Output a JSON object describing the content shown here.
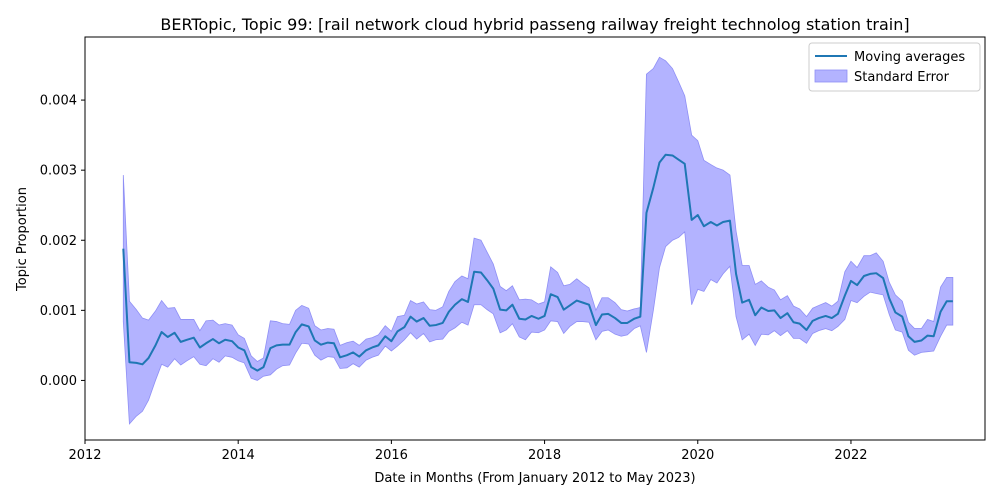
{
  "chart_data": {
    "type": "line",
    "title": "BERTopic, Topic 99: [rail network cloud hybrid passeng railway freight technolog station train]",
    "xlabel": "Date in Months (From January 2012 to May 2023)",
    "ylabel": "Topic Proportion",
    "xlim": [
      2012.0,
      2023.75
    ],
    "ylim": [
      -0.00085,
      0.0049
    ],
    "x_ticks": [
      2012,
      2014,
      2016,
      2018,
      2020,
      2022
    ],
    "x_tick_labels": [
      "2012",
      "2014",
      "2016",
      "2018",
      "2020",
      "2022"
    ],
    "y_ticks": [
      0,
      0.001,
      0.002,
      0.003,
      0.004
    ],
    "y_tick_labels": [
      "0.000",
      "0.001",
      "0.002",
      "0.003",
      "0.004"
    ],
    "legend": {
      "position": "top-right",
      "entries": [
        "Moving averages",
        "Standard Error"
      ]
    },
    "colors": {
      "line": "#1f77b4",
      "band": "#b3b3ff",
      "band_edge": "#8f8ff5"
    },
    "series": [
      {
        "name": "Moving averages",
        "points": [
          [
            2012.5,
            0.00188
          ],
          [
            2012.58,
            0.00026
          ],
          [
            2012.67,
            0.00025
          ],
          [
            2012.75,
            0.00023
          ],
          [
            2012.83,
            0.00032
          ],
          [
            2012.92,
            0.0005
          ],
          [
            2013.0,
            0.00069
          ],
          [
            2013.08,
            0.00062
          ],
          [
            2013.17,
            0.00068
          ],
          [
            2013.25,
            0.00055
          ],
          [
            2013.33,
            0.00058
          ],
          [
            2013.42,
            0.00061
          ],
          [
            2013.5,
            0.00047
          ],
          [
            2013.58,
            0.00053
          ],
          [
            2013.67,
            0.00059
          ],
          [
            2013.75,
            0.00053
          ],
          [
            2013.83,
            0.00058
          ],
          [
            2013.92,
            0.00056
          ],
          [
            2014.0,
            0.00047
          ],
          [
            2014.08,
            0.00043
          ],
          [
            2014.17,
            0.00019
          ],
          [
            2014.25,
            0.00014
          ],
          [
            2014.33,
            0.00019
          ],
          [
            2014.42,
            0.00046
          ],
          [
            2014.5,
            0.0005
          ],
          [
            2014.58,
            0.00051
          ],
          [
            2014.67,
            0.00051
          ],
          [
            2014.75,
            0.00069
          ],
          [
            2014.83,
            0.0008
          ],
          [
            2014.92,
            0.00077
          ],
          [
            2015.0,
            0.00057
          ],
          [
            2015.08,
            0.00051
          ],
          [
            2015.17,
            0.00054
          ],
          [
            2015.25,
            0.00053
          ],
          [
            2015.33,
            0.00033
          ],
          [
            2015.42,
            0.00036
          ],
          [
            2015.5,
            0.0004
          ],
          [
            2015.58,
            0.00034
          ],
          [
            2015.67,
            0.00043
          ],
          [
            2015.75,
            0.00047
          ],
          [
            2015.83,
            0.0005
          ],
          [
            2015.92,
            0.00063
          ],
          [
            2016.0,
            0.00056
          ],
          [
            2016.08,
            0.0007
          ],
          [
            2016.17,
            0.00076
          ],
          [
            2016.25,
            0.00091
          ],
          [
            2016.33,
            0.00084
          ],
          [
            2016.42,
            0.00089
          ],
          [
            2016.5,
            0.00078
          ],
          [
            2016.58,
            0.00079
          ],
          [
            2016.67,
            0.00082
          ],
          [
            2016.75,
            0.00098
          ],
          [
            2016.83,
            0.00108
          ],
          [
            2016.92,
            0.00116
          ],
          [
            2017.0,
            0.00112
          ],
          [
            2017.08,
            0.00155
          ],
          [
            2017.17,
            0.00154
          ],
          [
            2017.25,
            0.00143
          ],
          [
            2017.33,
            0.00131
          ],
          [
            2017.42,
            0.00101
          ],
          [
            2017.5,
            0.001
          ],
          [
            2017.58,
            0.00108
          ],
          [
            2017.67,
            0.00088
          ],
          [
            2017.75,
            0.00087
          ],
          [
            2017.83,
            0.00092
          ],
          [
            2017.92,
            0.00088
          ],
          [
            2018.0,
            0.00092
          ],
          [
            2018.08,
            0.00123
          ],
          [
            2018.17,
            0.00119
          ],
          [
            2018.25,
            0.00101
          ],
          [
            2018.33,
            0.00107
          ],
          [
            2018.42,
            0.00114
          ],
          [
            2018.5,
            0.00111
          ],
          [
            2018.58,
            0.00108
          ],
          [
            2018.67,
            0.00079
          ],
          [
            2018.75,
            0.00094
          ],
          [
            2018.83,
            0.00095
          ],
          [
            2018.92,
            0.00089
          ],
          [
            2019.0,
            0.00082
          ],
          [
            2019.08,
            0.00082
          ],
          [
            2019.17,
            0.00088
          ],
          [
            2019.25,
            0.00091
          ],
          [
            2019.33,
            0.00239
          ],
          [
            2019.42,
            0.00275
          ],
          [
            2019.5,
            0.00311
          ],
          [
            2019.58,
            0.00322
          ],
          [
            2019.67,
            0.00321
          ],
          [
            2019.75,
            0.00315
          ],
          [
            2019.83,
            0.00309
          ],
          [
            2019.92,
            0.00229
          ],
          [
            2020.0,
            0.00236
          ],
          [
            2020.08,
            0.0022
          ],
          [
            2020.17,
            0.00226
          ],
          [
            2020.25,
            0.00221
          ],
          [
            2020.33,
            0.00226
          ],
          [
            2020.42,
            0.00228
          ],
          [
            2020.5,
            0.00152
          ],
          [
            2020.58,
            0.00111
          ],
          [
            2020.67,
            0.00115
          ],
          [
            2020.75,
            0.00093
          ],
          [
            2020.83,
            0.00104
          ],
          [
            2020.92,
            0.00099
          ],
          [
            2021.0,
            0.001
          ],
          [
            2021.08,
            0.00089
          ],
          [
            2021.17,
            0.00096
          ],
          [
            2021.25,
            0.00083
          ],
          [
            2021.33,
            0.00081
          ],
          [
            2021.42,
            0.00072
          ],
          [
            2021.5,
            0.00085
          ],
          [
            2021.58,
            0.00089
          ],
          [
            2021.67,
            0.00092
          ],
          [
            2021.75,
            0.00089
          ],
          [
            2021.83,
            0.00095
          ],
          [
            2021.92,
            0.00121
          ],
          [
            2022.0,
            0.00142
          ],
          [
            2022.08,
            0.00136
          ],
          [
            2022.17,
            0.00149
          ],
          [
            2022.25,
            0.00152
          ],
          [
            2022.33,
            0.00153
          ],
          [
            2022.42,
            0.00146
          ],
          [
            2022.5,
            0.00117
          ],
          [
            2022.58,
            0.00097
          ],
          [
            2022.67,
            0.00091
          ],
          [
            2022.75,
            0.00063
          ],
          [
            2022.83,
            0.00055
          ],
          [
            2022.92,
            0.00057
          ],
          [
            2023.0,
            0.00064
          ],
          [
            2023.08,
            0.00063
          ],
          [
            2023.17,
            0.00098
          ],
          [
            2023.25,
            0.00113
          ],
          [
            2023.33,
            0.00113
          ]
        ]
      },
      {
        "name": "Standard Error",
        "upper": [
          0.00293,
          0.00113,
          0.00101,
          0.00089,
          0.00086,
          0.00099,
          0.00114,
          0.00103,
          0.00104,
          0.00087,
          0.00087,
          0.00087,
          0.00071,
          0.00085,
          0.00086,
          0.00079,
          0.00081,
          0.00079,
          0.00065,
          0.0006,
          0.00035,
          0.00027,
          0.00032,
          0.00085,
          0.00084,
          0.00081,
          0.0008,
          0.001,
          0.00107,
          0.00103,
          0.00078,
          0.00072,
          0.00074,
          0.00073,
          0.0005,
          0.00054,
          0.00056,
          0.0005,
          0.00059,
          0.00061,
          0.00065,
          0.00078,
          0.0007,
          0.00091,
          0.00093,
          0.00114,
          0.00109,
          0.00112,
          0.00101,
          0.001,
          0.00105,
          0.00127,
          0.00141,
          0.00149,
          0.00145,
          0.00203,
          0.002,
          0.00183,
          0.00166,
          0.00134,
          0.00128,
          0.00135,
          0.00115,
          0.00116,
          0.00115,
          0.00109,
          0.00112,
          0.00162,
          0.00154,
          0.00135,
          0.00137,
          0.00145,
          0.00138,
          0.00132,
          0.001,
          0.00118,
          0.00118,
          0.00111,
          0.00101,
          0.00099,
          0.00102,
          0.00104,
          0.00437,
          0.00445,
          0.00461,
          0.00456,
          0.00445,
          0.00426,
          0.00406,
          0.0035,
          0.00342,
          0.00314,
          0.00308,
          0.00303,
          0.003,
          0.00293,
          0.00213,
          0.00164,
          0.00164,
          0.00137,
          0.00142,
          0.00133,
          0.00129,
          0.00115,
          0.00121,
          0.00106,
          0.00102,
          0.00091,
          0.00103,
          0.00107,
          0.00111,
          0.00106,
          0.00113,
          0.00155,
          0.0017,
          0.00161,
          0.00178,
          0.00178,
          0.00182,
          0.0017,
          0.0014,
          0.00122,
          0.00113,
          0.00083,
          0.00074,
          0.00074,
          0.00087,
          0.00084,
          0.00133,
          0.00147,
          0.00147
        ],
        "lower": [
          0.00084,
          -0.00062,
          -0.00051,
          -0.00044,
          -0.00028,
          0.0,
          0.00023,
          0.00019,
          0.00031,
          0.00022,
          0.00028,
          0.00034,
          0.00023,
          0.00021,
          0.00031,
          0.00026,
          0.00035,
          0.00033,
          0.00028,
          0.00025,
          3e-05,
          0.0,
          6e-05,
          8e-05,
          0.00016,
          0.00021,
          0.00022,
          0.00039,
          0.00053,
          0.00052,
          0.00036,
          0.00029,
          0.00034,
          0.00033,
          0.00017,
          0.00018,
          0.00024,
          0.00019,
          0.00029,
          0.00033,
          0.00036,
          0.00049,
          0.00042,
          0.00049,
          0.00058,
          0.00068,
          0.00059,
          0.00067,
          0.00055,
          0.00058,
          0.00059,
          0.0007,
          0.00075,
          0.00083,
          0.00079,
          0.00108,
          0.00108,
          0.00101,
          0.00095,
          0.00068,
          0.00072,
          0.00081,
          0.00062,
          0.00058,
          0.00069,
          0.00068,
          0.00072,
          0.00085,
          0.00084,
          0.00067,
          0.00077,
          0.00084,
          0.00084,
          0.00083,
          0.00058,
          0.0007,
          0.00072,
          0.00066,
          0.00063,
          0.00065,
          0.00074,
          0.00078,
          0.0004,
          0.001,
          0.00161,
          0.00191,
          0.002,
          0.00204,
          0.00212,
          0.00108,
          0.0013,
          0.00127,
          0.00144,
          0.00139,
          0.00152,
          0.00163,
          0.00091,
          0.00058,
          0.00066,
          0.0005,
          0.00066,
          0.00065,
          0.00071,
          0.00064,
          0.00071,
          0.0006,
          0.0006,
          0.00053,
          0.00067,
          0.00071,
          0.00074,
          0.00071,
          0.00077,
          0.00087,
          0.00114,
          0.00111,
          0.0012,
          0.00126,
          0.00124,
          0.00122,
          0.00094,
          0.00072,
          0.00069,
          0.00043,
          0.00036,
          0.0004,
          0.00041,
          0.00042,
          0.00063,
          0.00079,
          0.00079
        ]
      }
    ]
  }
}
